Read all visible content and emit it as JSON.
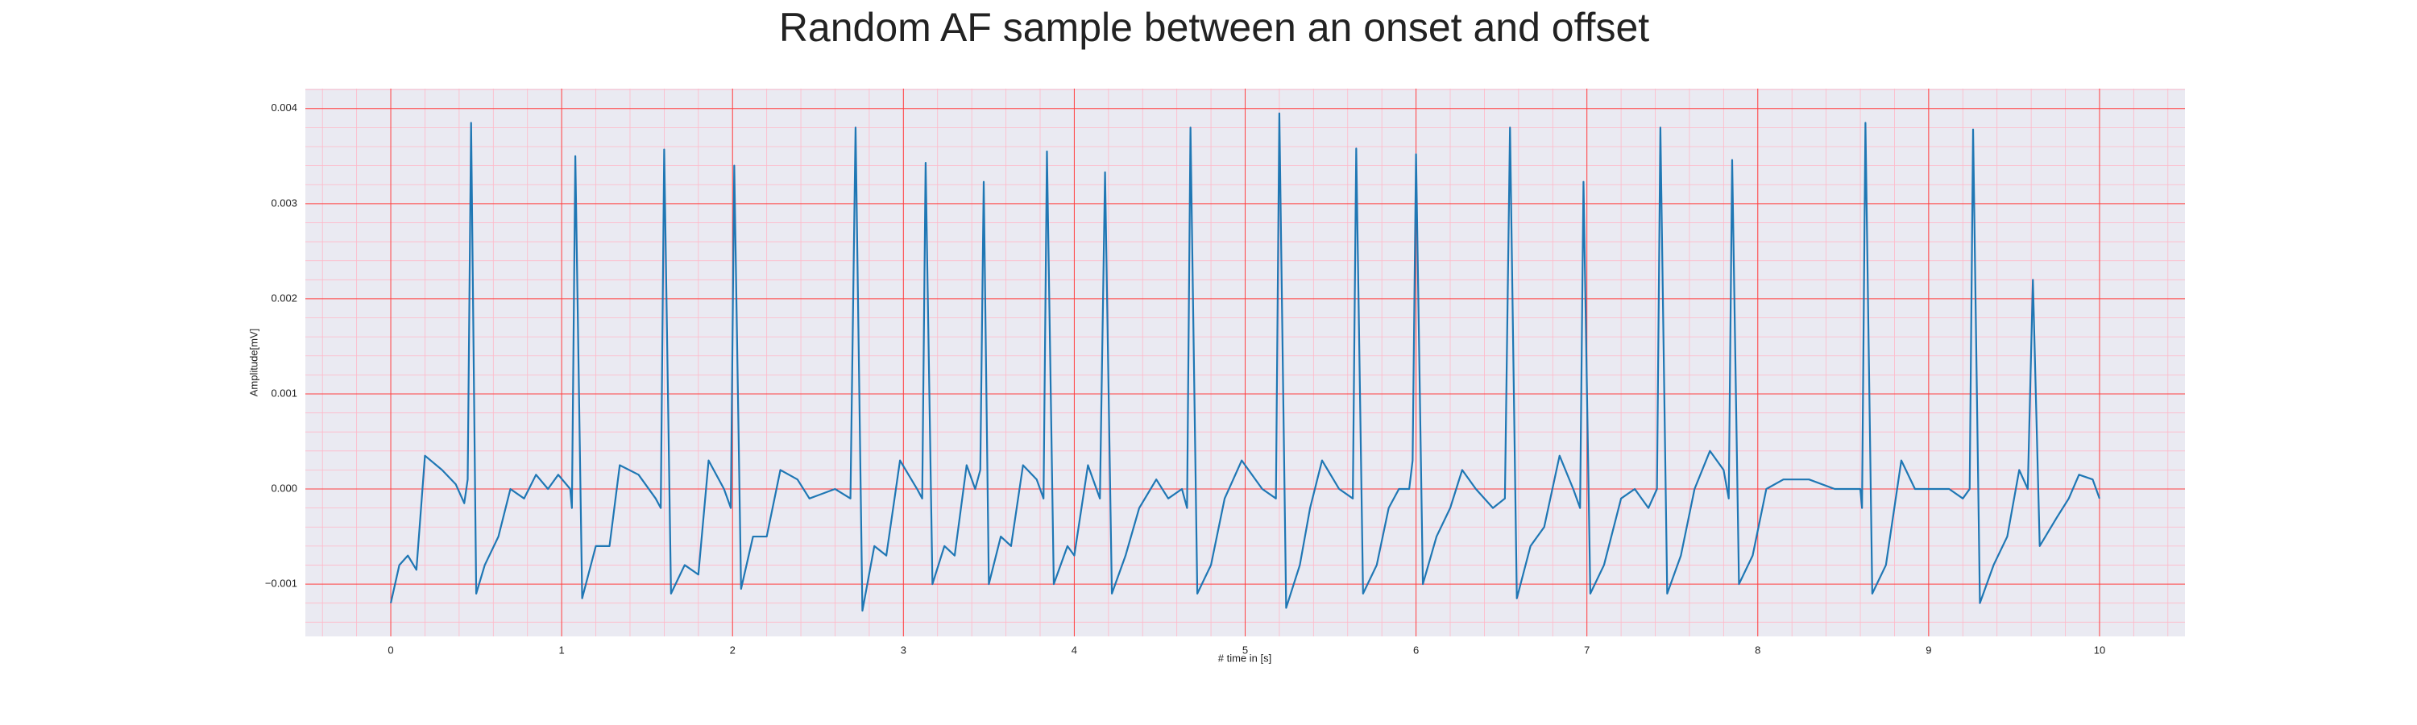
{
  "chart_data": {
    "type": "line",
    "title": "Random AF sample between an onset and offset",
    "xlabel": "# time in [s]",
    "ylabel": "Amplitude[mV]",
    "color": "#1f77b4",
    "grid": true,
    "minor_grid": true,
    "xlim": [
      -0.5,
      10.5
    ],
    "ylim": [
      -0.00155,
      0.00421
    ],
    "xticks": [
      0,
      1,
      2,
      3,
      4,
      5,
      6,
      7,
      8,
      9,
      10
    ],
    "yticks": [
      {
        "value": -0.001,
        "label": "−0.001"
      },
      {
        "value": 0,
        "label": "0.000"
      },
      {
        "value": 0.001,
        "label": "0.001"
      },
      {
        "value": 0.002,
        "label": "0.002"
      },
      {
        "value": 0.003,
        "label": "0.003"
      },
      {
        "value": 0.004,
        "label": "0.004"
      }
    ],
    "x": [
      0,
      0.05,
      0.1,
      0.15,
      0.2,
      0.3,
      0.38,
      0.43,
      0.45,
      0.47,
      0.5,
      0.55,
      0.63,
      0.7,
      0.78,
      0.85,
      0.92,
      0.98,
      1.05,
      1.06,
      1.08,
      1.12,
      1.2,
      1.28,
      1.34,
      1.45,
      1.55,
      1.58,
      1.6,
      1.64,
      1.72,
      1.8,
      1.86,
      1.95,
      1.99,
      2.01,
      2.05,
      2.12,
      2.2,
      2.28,
      2.38,
      2.45,
      2.6,
      2.69,
      2.72,
      2.76,
      2.83,
      2.9,
      2.98,
      3.08,
      3.11,
      3.13,
      3.17,
      3.24,
      3.3,
      3.37,
      3.42,
      3.45,
      3.47,
      3.5,
      3.57,
      3.63,
      3.7,
      3.78,
      3.82,
      3.84,
      3.88,
      3.96,
      4.0,
      4.08,
      4.15,
      4.18,
      4.22,
      4.3,
      4.38,
      4.48,
      4.55,
      4.63,
      4.66,
      4.68,
      4.72,
      4.8,
      4.88,
      4.98,
      5.1,
      5.18,
      5.2,
      5.24,
      5.32,
      5.38,
      5.45,
      5.55,
      5.63,
      5.65,
      5.69,
      5.77,
      5.84,
      5.9,
      5.96,
      5.98,
      6.0,
      6.04,
      6.12,
      6.2,
      6.27,
      6.35,
      6.45,
      6.52,
      6.55,
      6.59,
      6.67,
      6.75,
      6.84,
      6.92,
      6.96,
      6.98,
      7.02,
      7.1,
      7.2,
      7.28,
      7.36,
      7.41,
      7.43,
      7.47,
      7.55,
      7.63,
      7.72,
      7.8,
      7.83,
      7.85,
      7.89,
      7.97,
      8.05,
      8.15,
      8.3,
      8.45,
      8.6,
      8.61,
      8.63,
      8.67,
      8.75,
      8.84,
      8.92,
      9.02,
      9.12,
      9.2,
      9.24,
      9.26,
      9.3,
      9.38,
      9.46,
      9.53,
      9.58,
      9.61,
      9.65,
      9.75,
      9.82,
      9.88,
      9.96,
      10.0
    ],
    "values": [
      -0.0012,
      -0.0008,
      -0.0007,
      -0.00085,
      0.00035,
      0.0002,
      5e-05,
      -0.00015,
      0.0001,
      0.00385,
      -0.0011,
      -0.0008,
      -0.0005,
      0.0,
      -0.0001,
      0.00015,
      0.0,
      0.00015,
      0.0,
      -0.0002,
      0.0035,
      -0.00115,
      -0.0006,
      -0.0006,
      0.00025,
      0.00015,
      -0.0001,
      -0.0002,
      0.00357,
      -0.0011,
      -0.0008,
      -0.0009,
      0.0003,
      0.0,
      -0.0002,
      0.0034,
      -0.00105,
      -0.0005,
      -0.0005,
      0.0002,
      0.0001,
      -0.0001,
      0.0,
      -0.0001,
      0.0038,
      -0.00128,
      -0.0006,
      -0.0007,
      0.0003,
      0.0,
      -0.0001,
      0.00343,
      -0.001,
      -0.0006,
      -0.0007,
      0.00025,
      0.0,
      0.0002,
      0.00323,
      -0.001,
      -0.0005,
      -0.0006,
      0.00025,
      0.0001,
      -0.0001,
      0.00355,
      -0.001,
      -0.0006,
      -0.0007,
      0.00025,
      -0.0001,
      0.00333,
      -0.0011,
      -0.0007,
      -0.0002,
      0.0001,
      -0.0001,
      0.0,
      -0.0002,
      0.0038,
      -0.0011,
      -0.0008,
      -0.0001,
      0.0003,
      0.0,
      -0.0001,
      0.00395,
      -0.00125,
      -0.0008,
      -0.0002,
      0.0003,
      0.0,
      -0.0001,
      0.00358,
      -0.0011,
      -0.0008,
      -0.0002,
      0.0,
      0.0,
      0.0003,
      0.00352,
      -0.001,
      -0.0005,
      -0.0002,
      0.0002,
      0.0,
      -0.0002,
      -0.0001,
      0.0038,
      -0.00115,
      -0.0006,
      -0.0004,
      0.00035,
      0.0,
      -0.0002,
      0.00323,
      -0.0011,
      -0.0008,
      -0.0001,
      0.0,
      -0.0002,
      0.0,
      0.0038,
      -0.0011,
      -0.0007,
      0.0,
      0.0004,
      0.0002,
      -0.0001,
      0.00346,
      -0.001,
      -0.0007,
      0.0,
      0.0001,
      0.0001,
      0.0,
      0.0,
      -0.0002,
      0.00385,
      -0.0011,
      -0.0008,
      0.0003,
      0.0,
      0.0,
      0.0,
      -0.0001,
      0.0,
      0.00378,
      -0.0012,
      -0.0008,
      -0.0005,
      0.0002,
      0.0,
      0.0022,
      -0.0006,
      -0.0003,
      -0.0001,
      0.00015,
      0.0001,
      -0.0001
    ]
  }
}
